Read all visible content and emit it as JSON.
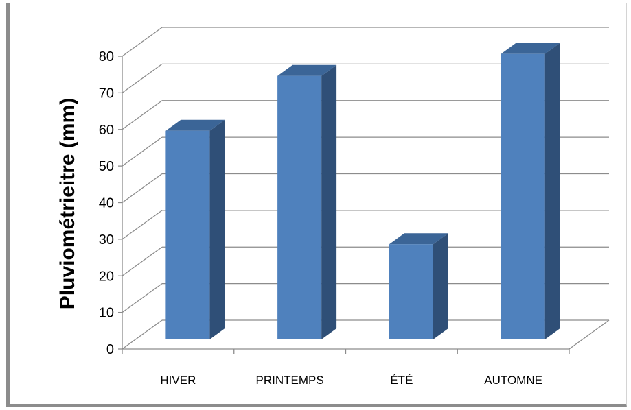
{
  "chart_data": {
    "type": "bar",
    "categories": [
      "HIVER",
      "PRINTEMPS",
      "ÉTÉ",
      "AUTOMNE"
    ],
    "values": [
      57,
      72,
      26,
      78
    ],
    "title": "",
    "xlabel": "",
    "ylabel": "Pluviométrieitre (mm)",
    "ylim": [
      0,
      80
    ],
    "yticks": [
      "0",
      "10",
      "20",
      "30",
      "40",
      "50",
      "60",
      "70",
      "80"
    ],
    "grid": true,
    "three_d": true,
    "colors": {
      "bar_front": "#4f81bd",
      "bar_side": "#2f4f77",
      "bar_top": "#3b6597",
      "grid": "#8c8c8c",
      "frame": "#8c8c8c"
    }
  }
}
